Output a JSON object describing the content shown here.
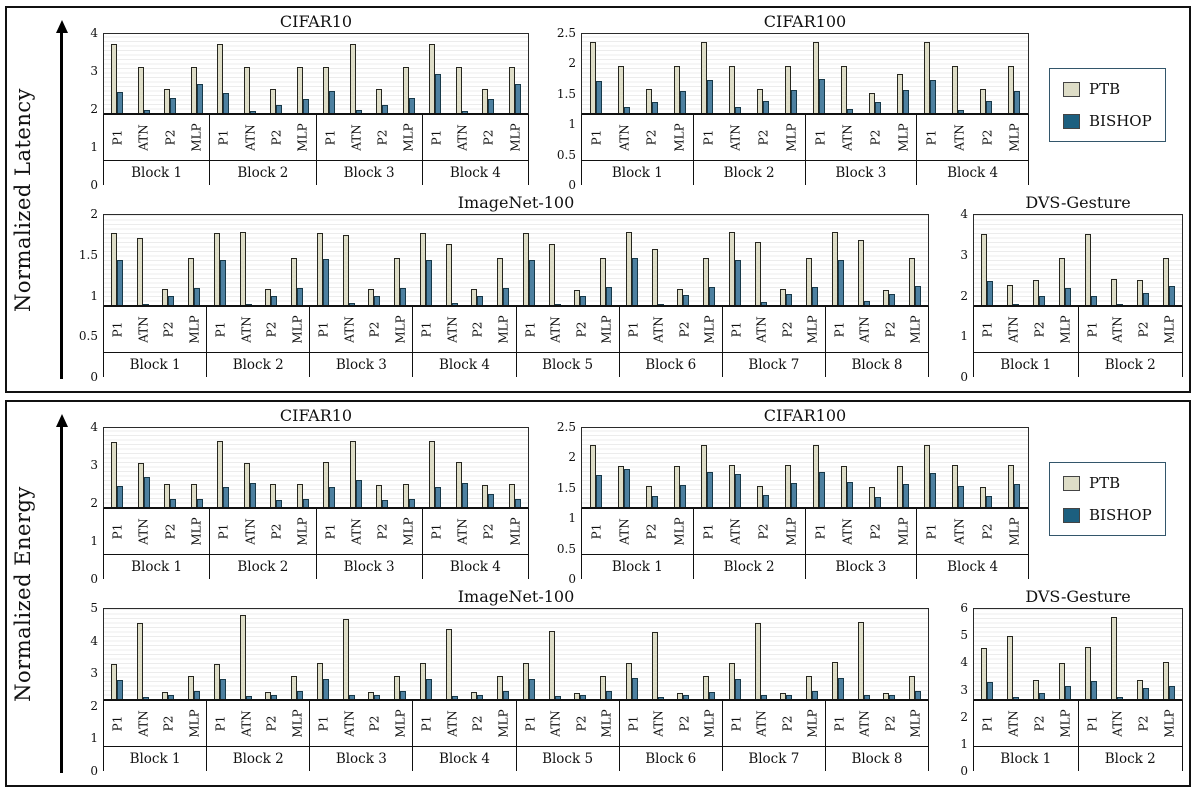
{
  "colors": {
    "ptb": "#deddc7",
    "bishop": "#4d80a0",
    "bishop_legend": "#1c5f7f",
    "bar_outline": "#26261f",
    "grid_stripe": "#ececec",
    "border": "#111111"
  },
  "legend": {
    "items": [
      {
        "label": "PTB"
      },
      {
        "label": "BISHOP"
      }
    ]
  },
  "panels": [
    {
      "axis_label": "Normalized Latency"
    },
    {
      "axis_label": "Normalized Energy"
    }
  ],
  "chart_data": [
    {
      "id": "lat_cifar10",
      "type": "bar",
      "title": "CIFAR10",
      "metric": "Normalized Latency",
      "ymax": 4,
      "yticks": [
        "4",
        "3",
        "2",
        "1",
        "0"
      ],
      "categories": [
        "P1",
        "ATN",
        "P2",
        "MLP"
      ],
      "series_names": [
        "PTB",
        "BISHOP"
      ],
      "blocks": [
        {
          "label": "Block 1",
          "PTB": [
            3.5,
            2.35,
            1.2,
            2.35
          ],
          "BISHOP": [
            1.05,
            0.15,
            0.75,
            1.45
          ]
        },
        {
          "label": "Block 2",
          "PTB": [
            3.5,
            2.35,
            1.2,
            2.35
          ],
          "BISHOP": [
            1.0,
            0.12,
            0.4,
            0.7
          ]
        },
        {
          "label": "Block 3",
          "PTB": [
            2.35,
            3.5,
            1.2,
            2.35
          ],
          "BISHOP": [
            1.1,
            0.15,
            0.4,
            0.75
          ]
        },
        {
          "label": "Block 4",
          "PTB": [
            3.5,
            2.35,
            1.2,
            2.35
          ],
          "BISHOP": [
            2.0,
            0.12,
            0.7,
            1.45
          ]
        }
      ]
    },
    {
      "id": "lat_cifar100",
      "type": "bar",
      "title": "CIFAR100",
      "metric": "Normalized Latency",
      "ymax": 2.5,
      "yticks": [
        "2.5",
        "2",
        "1.5",
        "1",
        "0.5",
        "0"
      ],
      "categories": [
        "P1",
        "ATN",
        "P2",
        "MLP"
      ],
      "series_names": [
        "PTB",
        "BISHOP"
      ],
      "blocks": [
        {
          "label": "Block 1",
          "PTB": [
            2.25,
            1.5,
            0.75,
            1.5
          ],
          "BISHOP": [
            1.0,
            0.2,
            0.35,
            0.7
          ]
        },
        {
          "label": "Block 2",
          "PTB": [
            2.25,
            1.5,
            0.75,
            1.5
          ],
          "BISHOP": [
            1.05,
            0.18,
            0.37,
            0.72
          ]
        },
        {
          "label": "Block 3",
          "PTB": [
            2.25,
            1.5,
            0.63,
            1.22
          ],
          "BISHOP": [
            1.07,
            0.12,
            0.35,
            0.72
          ]
        },
        {
          "label": "Block 4",
          "PTB": [
            2.25,
            1.5,
            0.75,
            1.5
          ],
          "BISHOP": [
            1.05,
            0.1,
            0.38,
            0.7
          ]
        }
      ]
    },
    {
      "id": "lat_imagenet",
      "type": "bar",
      "title": "ImageNet-100",
      "metric": "Normalized Latency",
      "ymax": 2,
      "yticks": [
        "2",
        "1.5",
        "1",
        "0.5",
        "0"
      ],
      "categories": [
        "P1",
        "ATN",
        "P2",
        "MLP"
      ],
      "series_names": [
        "PTB",
        "BISHOP"
      ],
      "blocks": [
        {
          "label": "Block 1",
          "PTB": [
            1.6,
            1.5,
            0.35,
            1.05
          ],
          "BISHOP": [
            1.0,
            0.03,
            0.2,
            0.38
          ]
        },
        {
          "label": "Block 2",
          "PTB": [
            1.6,
            1.62,
            0.35,
            1.05
          ],
          "BISHOP": [
            1.0,
            0.03,
            0.2,
            0.38
          ]
        },
        {
          "label": "Block 3",
          "PTB": [
            1.6,
            1.55,
            0.35,
            1.05
          ],
          "BISHOP": [
            1.02,
            0.05,
            0.2,
            0.38
          ]
        },
        {
          "label": "Block 4",
          "PTB": [
            1.6,
            1.35,
            0.35,
            1.05
          ],
          "BISHOP": [
            1.0,
            0.04,
            0.2,
            0.38
          ]
        },
        {
          "label": "Block 5",
          "PTB": [
            1.6,
            1.35,
            0.33,
            1.05
          ],
          "BISHOP": [
            1.0,
            0.03,
            0.2,
            0.4
          ]
        },
        {
          "label": "Block 6",
          "PTB": [
            1.62,
            1.25,
            0.35,
            1.05
          ],
          "BISHOP": [
            1.05,
            0.03,
            0.22,
            0.4
          ]
        },
        {
          "label": "Block 7",
          "PTB": [
            1.62,
            1.4,
            0.35,
            1.05
          ],
          "BISHOP": [
            1.0,
            0.07,
            0.25,
            0.4
          ]
        },
        {
          "label": "Block 8",
          "PTB": [
            1.62,
            1.45,
            0.33,
            1.05
          ],
          "BISHOP": [
            1.0,
            0.08,
            0.25,
            0.42
          ]
        }
      ]
    },
    {
      "id": "lat_dvs",
      "type": "bar",
      "title": "DVS-Gesture",
      "metric": "Normalized Latency",
      "ymax": 4,
      "yticks": [
        "4",
        "3",
        "2",
        "1",
        "0"
      ],
      "categories": [
        "P1",
        "ATN",
        "P2",
        "MLP"
      ],
      "series_names": [
        "PTB",
        "BISHOP"
      ],
      "blocks": [
        {
          "label": "Block 1",
          "PTB": [
            3.15,
            0.9,
            1.1,
            2.1
          ],
          "BISHOP": [
            1.05,
            0.05,
            0.4,
            0.75
          ]
        },
        {
          "label": "Block 2",
          "PTB": [
            3.15,
            1.15,
            1.1,
            2.1
          ],
          "BISHOP": [
            0.4,
            0.05,
            0.55,
            0.85
          ]
        }
      ]
    },
    {
      "id": "en_cifar10",
      "type": "bar",
      "title": "CIFAR10",
      "metric": "Normalized Energy",
      "ymax": 4,
      "yticks": [
        "4",
        "3",
        "2",
        "1",
        "0"
      ],
      "categories": [
        "P1",
        "ATN",
        "P2",
        "MLP"
      ],
      "series_names": [
        "PTB",
        "BISHOP"
      ],
      "blocks": [
        {
          "label": "Block 1",
          "PTB": [
            3.3,
            2.25,
            1.15,
            1.15
          ],
          "BISHOP": [
            1.05,
            1.5,
            0.4,
            0.4
          ]
        },
        {
          "label": "Block 2",
          "PTB": [
            3.35,
            2.25,
            1.15,
            1.15
          ],
          "BISHOP": [
            1.0,
            1.2,
            0.35,
            0.4
          ]
        },
        {
          "label": "Block 3",
          "PTB": [
            2.3,
            3.35,
            1.1,
            1.15
          ],
          "BISHOP": [
            1.0,
            1.35,
            0.35,
            0.4
          ]
        },
        {
          "label": "Block 4",
          "PTB": [
            3.35,
            2.3,
            1.1,
            1.15
          ],
          "BISHOP": [
            1.0,
            1.2,
            0.65,
            0.4
          ]
        }
      ]
    },
    {
      "id": "en_cifar100",
      "type": "bar",
      "title": "CIFAR100",
      "metric": "Normalized Energy",
      "ymax": 2.5,
      "yticks": [
        "2.5",
        "2",
        "1.5",
        "1",
        "0.5",
        "0"
      ],
      "categories": [
        "P1",
        "ATN",
        "P2",
        "MLP"
      ],
      "series_names": [
        "PTB",
        "BISHOP"
      ],
      "blocks": [
        {
          "label": "Block 1",
          "PTB": [
            1.95,
            1.3,
            0.65,
            1.3
          ],
          "BISHOP": [
            1.0,
            1.2,
            0.35,
            0.7
          ]
        },
        {
          "label": "Block 2",
          "PTB": [
            1.95,
            1.32,
            0.65,
            1.32
          ],
          "BISHOP": [
            1.1,
            1.05,
            0.37,
            0.75
          ]
        },
        {
          "label": "Block 3",
          "PTB": [
            1.95,
            1.3,
            0.63,
            1.3
          ],
          "BISHOP": [
            1.1,
            0.8,
            0.33,
            0.73
          ]
        },
        {
          "label": "Block 4",
          "PTB": [
            1.95,
            1.32,
            0.63,
            1.33
          ],
          "BISHOP": [
            1.08,
            0.68,
            0.35,
            0.72
          ]
        }
      ]
    },
    {
      "id": "en_imagenet",
      "type": "bar",
      "title": "ImageNet-100",
      "metric": "Normalized Energy",
      "ymax": 5,
      "yticks": [
        "5",
        "4",
        "3",
        "2",
        "1",
        "0"
      ],
      "categories": [
        "P1",
        "ATN",
        "P2",
        "MLP"
      ],
      "series_names": [
        "PTB",
        "BISHOP"
      ],
      "blocks": [
        {
          "label": "Block 1",
          "PTB": [
            1.95,
            4.25,
            0.4,
            1.3
          ],
          "BISHOP": [
            1.05,
            0.1,
            0.25,
            0.45
          ]
        },
        {
          "label": "Block 2",
          "PTB": [
            1.95,
            4.65,
            0.4,
            1.3
          ],
          "BISHOP": [
            1.1,
            0.15,
            0.25,
            0.45
          ]
        },
        {
          "label": "Block 3",
          "PTB": [
            2.0,
            4.45,
            0.4,
            1.3
          ],
          "BISHOP": [
            1.1,
            0.2,
            0.25,
            0.45
          ]
        },
        {
          "label": "Block 4",
          "PTB": [
            2.0,
            3.9,
            0.4,
            1.3
          ],
          "BISHOP": [
            1.1,
            0.15,
            0.2,
            0.45
          ]
        },
        {
          "label": "Block 5",
          "PTB": [
            2.0,
            3.8,
            0.35,
            1.3
          ],
          "BISHOP": [
            1.1,
            0.15,
            0.2,
            0.45
          ]
        },
        {
          "label": "Block 6",
          "PTB": [
            2.0,
            3.7,
            0.35,
            1.3
          ],
          "BISHOP": [
            1.15,
            0.1,
            0.25,
            0.4
          ]
        },
        {
          "label": "Block 7",
          "PTB": [
            2.0,
            4.2,
            0.35,
            1.3
          ],
          "BISHOP": [
            1.1,
            0.25,
            0.22,
            0.45
          ]
        },
        {
          "label": "Block 8",
          "PTB": [
            2.05,
            4.3,
            0.35,
            1.3
          ],
          "BISHOP": [
            1.15,
            0.25,
            0.2,
            0.45
          ]
        }
      ]
    },
    {
      "id": "en_dvs",
      "type": "bar",
      "title": "DVS-Gesture",
      "metric": "Normalized Energy",
      "ymax": 6,
      "yticks": [
        "6",
        "5",
        "4",
        "3",
        "2",
        "1",
        "0"
      ],
      "categories": [
        "P1",
        "ATN",
        "P2",
        "MLP"
      ],
      "series_names": [
        "PTB",
        "BISHOP"
      ],
      "blocks": [
        {
          "label": "Block 1",
          "PTB": [
            3.4,
            4.2,
            1.25,
            2.4
          ],
          "BISHOP": [
            1.15,
            0.15,
            0.4,
            0.85
          ]
        },
        {
          "label": "Block 2",
          "PTB": [
            3.5,
            5.5,
            1.25,
            2.45
          ],
          "BISHOP": [
            1.2,
            0.15,
            0.75,
            0.85
          ]
        }
      ]
    }
  ]
}
